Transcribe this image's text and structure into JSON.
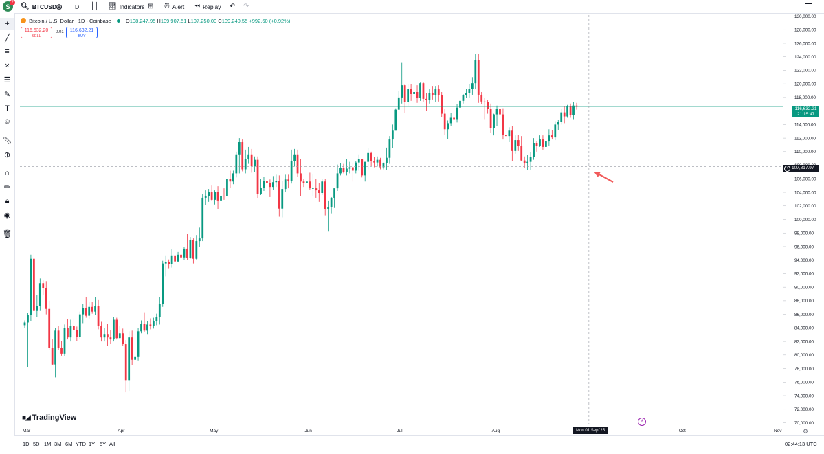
{
  "toolbar": {
    "symbol": "BTCUSD",
    "avatar_letter": "S",
    "notification_count": "2",
    "interval": "D",
    "indicators_label": "Indicators",
    "alert_label": "Alert",
    "replay_label": "Replay"
  },
  "legend": {
    "title": "Bitcoin / U.S. Dollar · 1D · Coinbase",
    "open_label": "O",
    "open": "108,247.95",
    "high_label": "H",
    "high": "109,907.51",
    "low_label": "L",
    "low": "107,250.00",
    "close_label": "C",
    "close": "109,240.55",
    "change": "+992.60 (+0.92%)"
  },
  "trade": {
    "sell_price": "116,632.20",
    "sell_label": "SELL",
    "spread": "0.01",
    "buy_price": "116,632.21",
    "buy_label": "BUY"
  },
  "price_labels": {
    "last_price": "116,632.21",
    "countdown": "21:15:47",
    "crosshair_price": "107,817.97",
    "crosshair_date": "Mon 01 Sep '25"
  },
  "bottom": {
    "timeframes": [
      "1D",
      "5D",
      "1M",
      "3M",
      "6M",
      "YTD",
      "1Y",
      "5Y",
      "All"
    ],
    "clock": "02:44:13 UTC"
  },
  "watermark": "TradingView",
  "colors": {
    "up": "#089981",
    "down": "#f23645",
    "last_price_bg": "#089981",
    "crosshair_bg": "#131722",
    "annotation_arrow": "#f15b5b"
  },
  "chart_data": {
    "type": "candlestick",
    "y_ticks": [
      "70,000.00",
      "72,000.00",
      "74,000.00",
      "76,000.00",
      "78,000.00",
      "80,000.00",
      "82,000.00",
      "84,000.00",
      "86,000.00",
      "88,000.00",
      "90,000.00",
      "92,000.00",
      "94,000.00",
      "96,000.00",
      "98,000.00",
      "100,000.00",
      "102,000.00",
      "104,000.00",
      "106,000.00",
      "108,000.00",
      "110,000.00",
      "112,000.00",
      "114,000.00",
      "116,000.00",
      "118,000.00",
      "120,000.00",
      "122,000.00",
      "124,000.00",
      "126,000.00",
      "128,000.00",
      "130,000.00"
    ],
    "ylim": [
      69000,
      131000
    ],
    "x_labels": [
      "Mar",
      "Apr",
      "May",
      "Jun",
      "Jul",
      "Aug",
      "Oct",
      "Nov"
    ],
    "x_label_offsets_days": [
      0,
      31,
      61,
      92,
      122,
      153,
      214,
      245
    ],
    "start_date": "2025-03-01",
    "days": 258,
    "candles": [
      [
        0,
        84400,
        85100,
        84000,
        84800
      ],
      [
        1,
        84800,
        86200,
        78200,
        85900
      ],
      [
        2,
        85900,
        94800,
        85000,
        94200
      ],
      [
        3,
        94200,
        95000,
        86000,
        86500
      ],
      [
        4,
        86500,
        88900,
        85600,
        87200
      ],
      [
        5,
        87200,
        91300,
        86500,
        90600
      ],
      [
        6,
        90600,
        91000,
        88800,
        89900
      ],
      [
        7,
        89900,
        90900,
        86000,
        86800
      ],
      [
        8,
        86800,
        88000,
        80800,
        81000
      ],
      [
        9,
        81000,
        82400,
        78500,
        78600
      ],
      [
        10,
        78600,
        84000,
        76700,
        83600
      ],
      [
        11,
        83600,
        84300,
        80800,
        81100
      ],
      [
        12,
        81100,
        82100,
        79900,
        80200
      ],
      [
        13,
        80200,
        84500,
        79800,
        84000
      ],
      [
        14,
        84000,
        85300,
        82300,
        82600
      ],
      [
        15,
        82600,
        85200,
        82000,
        84300
      ],
      [
        16,
        84300,
        85400,
        83200,
        83700
      ],
      [
        17,
        83700,
        84200,
        82100,
        82700
      ],
      [
        18,
        82700,
        86400,
        82300,
        86000
      ],
      [
        19,
        86000,
        87500,
        84700,
        86900
      ],
      [
        20,
        86900,
        88600,
        85500,
        85800
      ],
      [
        21,
        85800,
        87800,
        85300,
        87100
      ],
      [
        22,
        87100,
        87800,
        86100,
        86400
      ],
      [
        23,
        86400,
        88500,
        85900,
        87200
      ],
      [
        24,
        87200,
        88100,
        83800,
        84300
      ],
      [
        25,
        84300,
        84900,
        82000,
        82600
      ],
      [
        26,
        82600,
        84000,
        82000,
        83000
      ],
      [
        27,
        83000,
        84600,
        81300,
        82600
      ],
      [
        28,
        82600,
        83700,
        81600,
        82300
      ],
      [
        29,
        82300,
        85600,
        82000,
        85200
      ],
      [
        30,
        85200,
        85500,
        82300,
        82500
      ],
      [
        31,
        82500,
        84300,
        82400,
        83200
      ],
      [
        32,
        83200,
        83900,
        81300,
        81600
      ],
      [
        33,
        81600,
        82200,
        74500,
        76300
      ],
      [
        34,
        76300,
        83500,
        74600,
        82600
      ],
      [
        35,
        82600,
        83600,
        78500,
        79300
      ],
      [
        36,
        79300,
        80000,
        77200,
        79700
      ],
      [
        37,
        79700,
        84000,
        79200,
        83500
      ],
      [
        38,
        83500,
        85100,
        83200,
        84600
      ],
      [
        39,
        84600,
        86300,
        83400,
        83600
      ],
      [
        40,
        83600,
        85000,
        83000,
        84500
      ],
      [
        41,
        84500,
        85400,
        83800,
        84300
      ],
      [
        42,
        84300,
        85500,
        83900,
        85000
      ],
      [
        43,
        85000,
        86100,
        84400,
        85600
      ],
      [
        44,
        85600,
        88500,
        84500,
        87500
      ],
      [
        45,
        87500,
        93900,
        87100,
        93500
      ],
      [
        46,
        93500,
        94700,
        91600,
        93700
      ],
      [
        47,
        93700,
        94100,
        92800,
        93400
      ],
      [
        48,
        93400,
        95600,
        92900,
        94700
      ],
      [
        49,
        94700,
        95800,
        93800,
        93800
      ],
      [
        50,
        93800,
        95200,
        93700,
        94800
      ],
      [
        51,
        94800,
        95500,
        93700,
        94400
      ],
      [
        52,
        94400,
        96000,
        94000,
        95700
      ],
      [
        53,
        95700,
        97900,
        94000,
        94300
      ],
      [
        54,
        94300,
        97400,
        94200,
        97000
      ],
      [
        55,
        97000,
        97200,
        93500,
        94200
      ],
      [
        56,
        94200,
        97700,
        94100,
        96800
      ],
      [
        57,
        96800,
        98800,
        96000,
        97200
      ],
      [
        58,
        97200,
        103800,
        96800,
        103200
      ],
      [
        59,
        103200,
        104300,
        102100,
        103500
      ],
      [
        60,
        103500,
        104500,
        102600,
        104000
      ],
      [
        61,
        104000,
        105000,
        102700,
        102900
      ],
      [
        62,
        102900,
        104300,
        102200,
        104100
      ],
      [
        63,
        104100,
        104900,
        101500,
        102800
      ],
      [
        64,
        102800,
        104000,
        102000,
        103500
      ],
      [
        65,
        103500,
        104600,
        102900,
        103400
      ],
      [
        66,
        103400,
        107000,
        102600,
        106000
      ],
      [
        67,
        106000,
        107200,
        104700,
        105600
      ],
      [
        68,
        105600,
        107200,
        105200,
        106800
      ],
      [
        69,
        106800,
        110000,
        106200,
        109600
      ],
      [
        70,
        109600,
        112000,
        106800,
        111400
      ],
      [
        71,
        111400,
        111800,
        107100,
        107400
      ],
      [
        72,
        107400,
        110300,
        106800,
        108900
      ],
      [
        73,
        108900,
        110700,
        108200,
        109600
      ],
      [
        74,
        109600,
        110400,
        106900,
        107900
      ],
      [
        75,
        107900,
        109300,
        107000,
        108800
      ],
      [
        76,
        108800,
        109300,
        103100,
        103800
      ],
      [
        77,
        103800,
        106000,
        103600,
        104700
      ],
      [
        78,
        104700,
        106300,
        104200,
        105700
      ],
      [
        79,
        105700,
        106800,
        104300,
        105400
      ],
      [
        80,
        105400,
        105900,
        103300,
        104800
      ],
      [
        81,
        104800,
        106400,
        104400,
        105500
      ],
      [
        82,
        105500,
        106600,
        104800,
        105700
      ],
      [
        83,
        105700,
        106500,
        100400,
        101600
      ],
      [
        84,
        101600,
        105700,
        100300,
        104500
      ],
      [
        85,
        104500,
        106600,
        104000,
        105900
      ],
      [
        86,
        105900,
        106600,
        104600,
        105700
      ],
      [
        87,
        105700,
        110300,
        105300,
        108600
      ],
      [
        88,
        108600,
        110400,
        107800,
        109600
      ],
      [
        89,
        109600,
        110300,
        106300,
        106800
      ],
      [
        90,
        106800,
        108900,
        103400,
        105600
      ],
      [
        91,
        105600,
        106000,
        104800,
        105400
      ],
      [
        92,
        105400,
        106100,
        104800,
        105600
      ],
      [
        93,
        105600,
        106900,
        104400,
        104600
      ],
      [
        94,
        104600,
        106700,
        103400,
        104600
      ],
      [
        95,
        104600,
        106000,
        103200,
        104300
      ],
      [
        96,
        104300,
        105400,
        102600,
        103900
      ],
      [
        97,
        103900,
        106000,
        103600,
        105600
      ],
      [
        98,
        105600,
        106000,
        100600,
        101500
      ],
      [
        99,
        101500,
        102800,
        98200,
        101800
      ],
      [
        100,
        101800,
        103300,
        100900,
        103200
      ],
      [
        101,
        103200,
        104000,
        101700,
        104600
      ],
      [
        102,
        104600,
        108100,
        104200,
        106800
      ],
      [
        103,
        106800,
        108300,
        106500,
        107600
      ],
      [
        104,
        107600,
        108200,
        106800,
        107000
      ],
      [
        105,
        107000,
        108900,
        106500,
        107500
      ],
      [
        106,
        107500,
        108500,
        106800,
        107700
      ],
      [
        107,
        107700,
        108300,
        105600,
        107200
      ],
      [
        108,
        107200,
        108600,
        106800,
        108400
      ],
      [
        109,
        108400,
        109600,
        107200,
        108900
      ],
      [
        110,
        108900,
        108900,
        106200,
        106500
      ],
      [
        111,
        106500,
        108500,
        105600,
        108500
      ],
      [
        112,
        108500,
        110500,
        107400,
        109800
      ],
      [
        113,
        109800,
        110000,
        107900,
        108600
      ],
      [
        114,
        108600,
        109200,
        107700,
        108400
      ],
      [
        115,
        108400,
        109300,
        107800,
        108800
      ],
      [
        116,
        108800,
        109100,
        107400,
        107700
      ],
      [
        117,
        107700,
        108400,
        107400,
        108300
      ],
      [
        118,
        108300,
        110600,
        107300,
        109100
      ],
      [
        119,
        109100,
        112300,
        108200,
        111800
      ],
      [
        120,
        111800,
        114000,
        110500,
        113100
      ],
      [
        121,
        113100,
        116400,
        113100,
        116200
      ],
      [
        122,
        116200,
        118900,
        116200,
        118000
      ],
      [
        123,
        118000,
        123200,
        117100,
        119800
      ],
      [
        124,
        119800,
        120000,
        115700,
        117300
      ],
      [
        125,
        117300,
        120000,
        116700,
        119300
      ],
      [
        126,
        119300,
        120000,
        117500,
        118500
      ],
      [
        127,
        118500,
        120000,
        117800,
        118800
      ],
      [
        128,
        118800,
        119800,
        117200,
        117900
      ],
      [
        129,
        117900,
        120200,
        117500,
        120100
      ],
      [
        130,
        120100,
        120300,
        117400,
        117800
      ],
      [
        131,
        117800,
        118600,
        116000,
        117600
      ],
      [
        132,
        117600,
        119200,
        117100,
        118700
      ],
      [
        133,
        118700,
        119700,
        117700,
        118300
      ],
      [
        134,
        118300,
        119700,
        117300,
        119200
      ],
      [
        135,
        119200,
        119800,
        117400,
        118300
      ],
      [
        136,
        118300,
        118800,
        115100,
        115600
      ],
      [
        137,
        115600,
        116300,
        112500,
        113300
      ],
      [
        138,
        113300,
        114600,
        111900,
        114200
      ],
      [
        139,
        114200,
        115700,
        113800,
        115000
      ],
      [
        140,
        115000,
        115500,
        114200,
        114800
      ],
      [
        141,
        114800,
        117000,
        114300,
        116500
      ],
      [
        142,
        116500,
        118000,
        116000,
        117500
      ],
      [
        143,
        117500,
        118500,
        117100,
        118300
      ],
      [
        144,
        118300,
        119200,
        117900,
        118600
      ],
      [
        145,
        118600,
        120000,
        118000,
        119300
      ],
      [
        146,
        119300,
        121000,
        118400,
        120100
      ],
      [
        147,
        120100,
        124400,
        119200,
        123500
      ],
      [
        148,
        123500,
        124400,
        117200,
        118400
      ],
      [
        149,
        118400,
        118800,
        117000,
        117400
      ],
      [
        150,
        117400,
        117900,
        114800,
        117300
      ],
      [
        151,
        117300,
        117600,
        115600,
        116300
      ],
      [
        152,
        116300,
        117100,
        112800,
        113500
      ],
      [
        153,
        113500,
        115600,
        112400,
        115500
      ],
      [
        154,
        115500,
        116800,
        113800,
        116300
      ],
      [
        155,
        116300,
        117300,
        114400,
        115500
      ],
      [
        156,
        115500,
        116400,
        111800,
        112500
      ],
      [
        157,
        112500,
        113400,
        110900,
        112300
      ],
      [
        158,
        112300,
        113600,
        111400,
        113100
      ],
      [
        159,
        113100,
        113800,
        108600,
        110100
      ],
      [
        160,
        110100,
        112400,
        109700,
        111700
      ],
      [
        161,
        111700,
        112500,
        110100,
        110800
      ],
      [
        162,
        110800,
        112300,
        108600,
        108700
      ],
      [
        163,
        108700,
        109300,
        107600,
        108300
      ],
      [
        164,
        108300,
        109500,
        107300,
        108500
      ],
      [
        165,
        108500,
        109900,
        107300,
        109200
      ],
      [
        166,
        109200,
        112000,
        108800,
        111300
      ],
      [
        167,
        111300,
        111600,
        110000,
        110800
      ],
      [
        168,
        110800,
        112400,
        110700,
        111800
      ],
      [
        169,
        111800,
        112400,
        110300,
        110700
      ],
      [
        170,
        110700,
        111900,
        110000,
        111500
      ],
      [
        171,
        111500,
        113300,
        110900,
        112400
      ],
      [
        172,
        112400,
        113200,
        111800,
        112100
      ],
      [
        173,
        112100,
        114500,
        111700,
        114000
      ],
      [
        174,
        114000,
        114700,
        113200,
        114400
      ],
      [
        175,
        114400,
        116300,
        114000,
        115800
      ],
      [
        176,
        115800,
        116700,
        114200,
        115200
      ],
      [
        177,
        115200,
        116900,
        115000,
        116700
      ],
      [
        178,
        116700,
        117100,
        115000,
        115400
      ],
      [
        179,
        115400,
        117300,
        114800,
        116800
      ],
      [
        180,
        116800,
        117200,
        116200,
        116632
      ]
    ]
  }
}
